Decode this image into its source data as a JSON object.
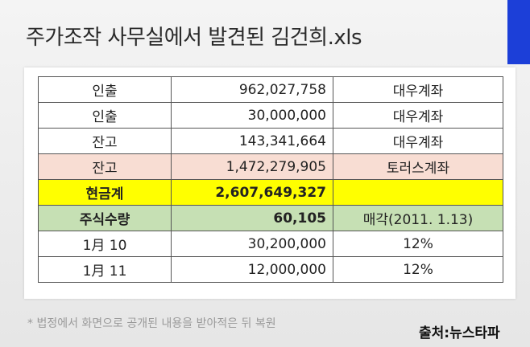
{
  "title": "주가조작 사무실에서 발견된 김건희.xls",
  "table": {
    "rows": [
      [
        "인출",
        "962,027,758",
        "대우계좌"
      ],
      [
        "인출",
        "30,000,000",
        "대우계좌"
      ],
      [
        "잔고",
        "143,341,664",
        "대우계좌"
      ],
      [
        "잔고",
        "1,472,279,905",
        "토러스계좌"
      ],
      [
        "현금계",
        "2,607,649,327"
      ],
      [
        "주식수량",
        "60,105",
        "매각(2011. 1.13)"
      ],
      [
        "1月 10",
        "30,200,000",
        "12%"
      ],
      [
        "1月 11",
        "12,000,000",
        "12%"
      ]
    ]
  },
  "footnote": "* 법정에서 화면으로 공개된 내용을 받아적은 뒤 복원",
  "source": "출처:뉴스타파"
}
